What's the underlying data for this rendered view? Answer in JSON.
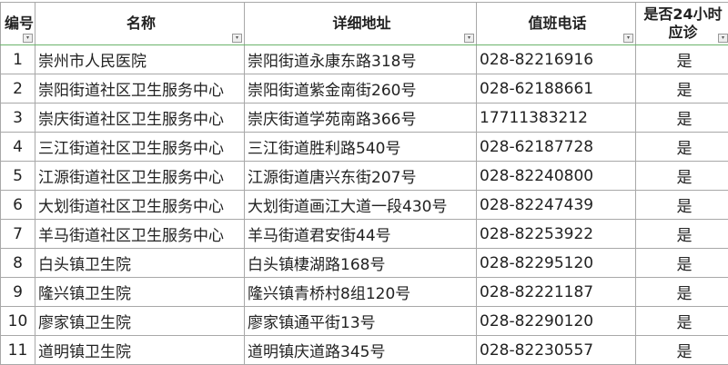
{
  "headers": {
    "no": "编号",
    "name": "名称",
    "address": "详细地址",
    "phone": "值班电话",
    "h24": "是否24小时应诊"
  },
  "filter_icon": "dropdown-arrow-icon",
  "rows": [
    {
      "no": "1",
      "name": "崇州市人民医院",
      "address": "崇阳街道永康东路318号",
      "phone": "028-82216916",
      "h24": "是"
    },
    {
      "no": "2",
      "name": "崇阳街道社区卫生服务中心",
      "address": "崇阳街道紫金南街260号",
      "phone": "028-62188661",
      "h24": "是"
    },
    {
      "no": "3",
      "name": "崇庆街道社区卫生服务中心",
      "address": "崇庆街道学苑南路366号",
      "phone": "17711383212",
      "h24": "是"
    },
    {
      "no": "4",
      "name": "三江街道社区卫生服务中心",
      "address": "三江街道胜利路540号",
      "phone": "028-62187728",
      "h24": "是"
    },
    {
      "no": "5",
      "name": "江源街道社区卫生服务中心",
      "address": "江源街道唐兴东街207号",
      "phone": "028-82240800",
      "h24": "是"
    },
    {
      "no": "6",
      "name": "大划街道社区卫生服务中心",
      "address": "大划街道画江大道一段430号",
      "phone": "028-82247439",
      "h24": "是"
    },
    {
      "no": "7",
      "name": "羊马街道社区卫生服务中心",
      "address": "羊马街道君安街44号",
      "phone": "028-82253922",
      "h24": "是"
    },
    {
      "no": "8",
      "name": "白头镇卫生院",
      "address": "白头镇棲湖路168号",
      "phone": "028-82295120",
      "h24": "是"
    },
    {
      "no": "9",
      "name": "隆兴镇卫生院",
      "address": "隆兴镇青桥村8组120号",
      "phone": "028-82221187",
      "h24": "是"
    },
    {
      "no": "10",
      "name": "廖家镇卫生院",
      "address": "廖家镇通平街13号",
      "phone": "028-82290120",
      "h24": "是"
    },
    {
      "no": "11",
      "name": "道明镇卫生院",
      "address": "道明镇庆道路345号",
      "phone": "028-82230557",
      "h24": "是"
    }
  ]
}
